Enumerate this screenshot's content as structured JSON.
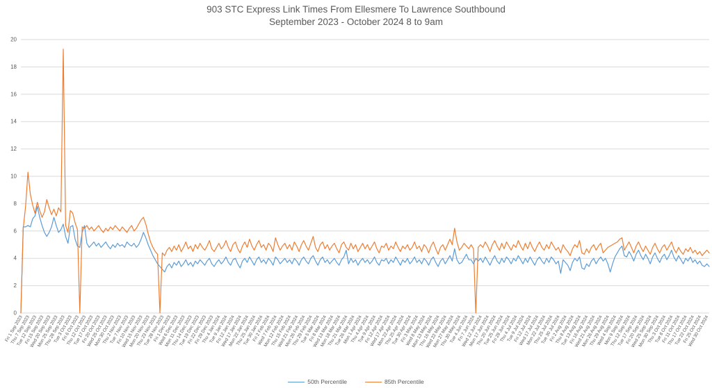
{
  "chart_data": {
    "type": "line",
    "title_line1": "903 STC Express Link Times From Ellesmere To Lawrence Southbound",
    "title_line2": "September 2023 - October 2024 8 to 9am",
    "xlabel": "",
    "ylabel": "",
    "ylim": [
      0,
      20
    ],
    "y_tick_step": 2,
    "grid": "horizontal",
    "legend_position": "bottom-center",
    "colors": {
      "series_50th": "#5B9BD5",
      "series_85th": "#ED7D31",
      "gridline": "#D9D9D9",
      "axis_text": "#595959",
      "title_text": "#595959"
    },
    "label_every_n_points": 3,
    "x_labels": [
      "Fri 1 Sep 2023",
      "Thu 7 Sep 2023",
      "Tue 12 Sep 2023",
      "Fri 15 Sep 2023",
      "Wed 20 Sep 2023",
      "Mon 25 Sep 2023",
      "Thu 28 Sep 2023",
      "Tue 3 Oct 2023",
      "Fri 6 Oct 2023",
      "Thu 12 Oct 2023",
      "Tue 17 Oct 2023",
      "Fri 20 Oct 2023",
      "Wed 25 Oct 2023",
      "Mon 30 Oct 2023",
      "Thu 2 Nov 2023",
      "Tue 7 Nov 2023",
      "Fri 10 Nov 2023",
      "Wed 15 Nov 2023",
      "Mon 20 Nov 2023",
      "Thu 23 Nov 2023",
      "Tue 28 Nov 2023",
      "Fri 1 Dec 2023",
      "Wed 6 Dec 2023",
      "Mon 11 Dec 2023",
      "Thu 14 Dec 2023",
      "Tue 19 Dec 2023",
      "Fri 22 Dec 2023",
      "Fri 29 Dec 2023",
      "Thu 4 Jan 2024",
      "Tue 9 Jan 2024",
      "Fri 12 Jan 2024",
      "Wed 17 Jan 2024",
      "Mon 22 Jan 2024",
      "Thu 25 Jan 2024",
      "Tue 30 Jan 2024",
      "Fri 2 Feb 2024",
      "Wed 7 Feb 2024",
      "Mon 12 Feb 2024",
      "Thu 15 Feb 2024",
      "Wed 21 Feb 2024",
      "Mon 26 Feb 2024",
      "Thu 29 Feb 2024",
      "Tue 5 Mar 2024",
      "Fri 8 Mar 2024",
      "Wed 13 Mar 2024",
      "Mon 18 Mar 2024",
      "Thu 21 Mar 2024",
      "Tue 26 Mar 2024",
      "Mon 1 Apr 2024",
      "Thu 4 Apr 2024",
      "Tue 9 Apr 2024",
      "Fri 12 Apr 2024",
      "Wed 17 Apr 2024",
      "Mon 22 Apr 2024",
      "Thu 25 Apr 2024",
      "Tue 30 Apr 2024",
      "Fri 3 May 2024",
      "Wed 8 May 2024",
      "Mon 13 May 2024",
      "Thu 16 May 2024",
      "Wed 22 May 2024",
      "Mon 27 May 2024",
      "Thu 30 May 2024",
      "Tue 4 Jun 2024",
      "Fri 7 Jun 2024",
      "Wed 12 Jun 2024",
      "Mon 17 Jun 2024",
      "Thu 20 Jun 2024",
      "Tue 25 Jun 2024",
      "Fri 28 Jun 2024",
      "Thu 4 Jul 2024",
      "Tue 9 Jul 2024",
      "Fri 12 Jul 2024",
      "Wed 17 Jul 2024",
      "Mon 22 Jul 2024",
      "Thu 25 Jul 2024",
      "Tue 30 Jul 2024",
      "Fri 2 Aug 2024",
      "Thu 8 Aug 2024",
      "Tue 13 Aug 2024",
      "Fri 16 Aug 2024",
      "Wed 21 Aug 2024",
      "Mon 26 Aug 2024",
      "Thu 29 Aug 2024",
      "Wed 4 Sep 2024",
      "Mon 9 Sep 2024",
      "Thu 12 Sep 2024",
      "Tue 17 Sep 2024",
      "Fri 20 Sep 2024",
      "Wed 25 Sep 2024",
      "Mon 30 Sep 2024",
      "Thu 3 Oct 2024",
      "Tue 8 Oct 2024",
      "Fri 11 Oct 2024",
      "Thu 17 Oct 2024",
      "Tue 22 Oct 2024",
      "Fri 25 Oct 2024",
      "Wed 30 Oct 2024"
    ],
    "series": [
      {
        "name": "50th Percentile",
        "color": "#5B9BD5",
        "values": [
          0,
          6.3,
          6.3,
          6.4,
          6.3,
          6.9,
          7.1,
          7.8,
          7.0,
          6.4,
          5.9,
          5.6,
          5.9,
          6.3,
          7.0,
          6.4,
          5.9,
          6.1,
          6.5,
          5.6,
          5.1,
          6.3,
          6.4,
          5.4,
          4.9,
          4.8,
          5.9,
          6.4,
          5.1,
          4.8,
          5.0,
          5.2,
          4.9,
          5.1,
          4.8,
          5.0,
          5.2,
          4.9,
          4.7,
          5.0,
          4.8,
          5.1,
          4.9,
          5.0,
          4.8,
          5.2,
          5.0,
          4.9,
          5.1,
          4.8,
          5.0,
          5.4,
          5.9,
          5.5,
          5.0,
          4.6,
          4.2,
          3.9,
          3.6,
          3.4,
          3.2,
          3.0,
          3.4,
          3.6,
          3.3,
          3.7,
          3.5,
          3.8,
          3.4,
          3.6,
          3.9,
          3.5,
          3.7,
          3.4,
          3.8,
          3.6,
          3.9,
          3.7,
          3.5,
          3.8,
          4.0,
          3.6,
          3.4,
          3.7,
          3.9,
          3.6,
          3.8,
          4.1,
          3.7,
          3.5,
          3.9,
          4.0,
          3.6,
          3.3,
          3.8,
          4.0,
          3.7,
          4.1,
          3.8,
          3.5,
          3.9,
          4.1,
          3.7,
          3.9,
          3.6,
          4.0,
          3.8,
          3.5,
          4.1,
          3.9,
          3.6,
          3.8,
          4.0,
          3.7,
          3.9,
          3.6,
          4.0,
          3.8,
          3.5,
          3.9,
          4.1,
          3.8,
          3.6,
          4.0,
          4.2,
          3.8,
          3.5,
          3.9,
          4.1,
          3.7,
          3.9,
          3.6,
          3.8,
          4.0,
          3.7,
          3.5,
          3.9,
          4.1,
          4.6,
          3.6,
          4.0,
          3.7,
          3.9,
          3.5,
          3.8,
          4.0,
          3.7,
          3.9,
          3.6,
          3.8,
          4.1,
          3.7,
          3.5,
          3.9,
          3.8,
          4.0,
          3.6,
          3.9,
          3.7,
          4.1,
          3.8,
          3.5,
          3.9,
          3.7,
          4.0,
          3.6,
          3.8,
          4.1,
          3.7,
          3.9,
          3.6,
          4.0,
          3.8,
          3.5,
          3.9,
          4.1,
          3.7,
          3.4,
          3.8,
          4.0,
          3.6,
          3.9,
          4.2,
          3.8,
          4.7,
          3.9,
          3.6,
          3.7,
          4.0,
          4.3,
          3.9,
          3.9,
          3.6,
          4.0,
          3.8,
          4.0,
          3.7,
          4.1,
          3.8,
          3.5,
          3.9,
          4.2,
          3.8,
          3.6,
          4.0,
          3.7,
          4.1,
          3.9,
          3.6,
          4.0,
          3.8,
          4.2,
          3.9,
          3.6,
          4.0,
          3.7,
          4.1,
          3.8,
          3.5,
          3.9,
          4.1,
          3.8,
          3.6,
          4.0,
          3.7,
          4.1,
          3.9,
          3.6,
          3.8,
          2.9,
          3.9,
          3.7,
          3.5,
          3.1,
          3.7,
          4.0,
          3.8,
          4.1,
          3.3,
          3.2,
          3.6,
          3.4,
          3.8,
          4.0,
          3.6,
          3.9,
          4.1,
          3.8,
          4.0,
          3.6,
          3.0,
          3.6,
          4.1,
          4.4,
          4.7,
          4.9,
          4.2,
          4.1,
          4.5,
          4.2,
          3.8,
          4.3,
          4.6,
          4.2,
          3.9,
          4.3,
          4.0,
          3.6,
          4.1,
          4.4,
          4.0,
          3.7,
          4.1,
          4.3,
          3.9,
          4.2,
          4.6,
          4.1,
          3.8,
          4.2,
          3.9,
          3.6,
          4.0,
          3.8,
          4.1,
          3.7,
          3.9,
          3.6,
          3.8,
          3.5,
          3.4,
          3.6,
          3.4
        ]
      },
      {
        "name": "85th Percentile",
        "color": "#ED7D31",
        "values": [
          0,
          6.2,
          7.8,
          10.3,
          8.7,
          7.9,
          7.3,
          8.1,
          7.5,
          7.0,
          7.4,
          8.3,
          7.7,
          7.2,
          7.6,
          7.1,
          7.7,
          7.4,
          19.3,
          6.4,
          5.9,
          7.5,
          7.3,
          6.6,
          6.1,
          0,
          6.3,
          6.2,
          6.4,
          6.1,
          6.3,
          6.0,
          6.2,
          6.4,
          6.1,
          5.9,
          6.2,
          6.0,
          6.3,
          6.1,
          6.4,
          6.2,
          6.0,
          6.3,
          6.1,
          5.9,
          6.2,
          6.4,
          6.0,
          6.2,
          6.5,
          6.8,
          7.0,
          6.5,
          5.8,
          5.2,
          4.8,
          4.5,
          4.3,
          0,
          4.4,
          4.2,
          4.6,
          4.8,
          4.5,
          4.9,
          4.6,
          5.0,
          4.5,
          4.8,
          5.2,
          4.7,
          4.9,
          4.5,
          5.0,
          4.7,
          5.1,
          4.8,
          4.6,
          4.9,
          5.3,
          4.7,
          4.5,
          4.8,
          5.1,
          4.7,
          4.9,
          5.3,
          4.8,
          4.5,
          5.0,
          5.2,
          4.7,
          4.4,
          4.9,
          5.2,
          4.8,
          5.4,
          4.9,
          4.6,
          5.0,
          5.3,
          4.8,
          5.0,
          4.6,
          5.1,
          4.9,
          4.5,
          5.5,
          5.0,
          4.6,
          4.9,
          5.1,
          4.7,
          5.0,
          4.6,
          5.2,
          4.9,
          4.5,
          5.0,
          5.3,
          4.9,
          4.6,
          5.1,
          5.6,
          4.8,
          4.5,
          5.0,
          5.2,
          4.7,
          5.0,
          4.6,
          4.9,
          5.1,
          4.7,
          4.4,
          5.0,
          5.2,
          4.8,
          4.6,
          5.1,
          4.7,
          5.0,
          4.5,
          4.8,
          5.1,
          4.7,
          5.0,
          4.6,
          4.9,
          5.2,
          4.7,
          4.4,
          4.9,
          4.8,
          5.1,
          4.6,
          4.9,
          4.7,
          5.2,
          4.8,
          4.5,
          4.9,
          4.7,
          5.0,
          4.6,
          4.8,
          5.2,
          4.7,
          4.9,
          4.5,
          5.0,
          4.8,
          4.4,
          4.9,
          5.2,
          4.7,
          4.3,
          4.8,
          5.0,
          4.6,
          5.0,
          5.4,
          5.0,
          6.2,
          5.2,
          4.6,
          4.8,
          5.1,
          4.9,
          4.7,
          5.0,
          4.7,
          0,
          4.8,
          5.0,
          4.8,
          5.2,
          4.9,
          4.5,
          5.0,
          5.3,
          4.9,
          4.6,
          5.1,
          4.7,
          5.2,
          4.9,
          4.6,
          5.0,
          4.8,
          5.3,
          4.9,
          4.6,
          5.1,
          4.7,
          5.2,
          4.8,
          4.5,
          4.9,
          5.2,
          4.8,
          4.6,
          5.0,
          4.7,
          5.2,
          4.9,
          4.6,
          4.8,
          4.4,
          5.0,
          4.7,
          4.5,
          4.2,
          4.7,
          5.0,
          4.8,
          5.3,
          4.4,
          4.3,
          4.7,
          4.4,
          4.8,
          5.0,
          4.6,
          4.9,
          5.1,
          4.4,
          4.6,
          4.8,
          4.9,
          5.0,
          5.1,
          5.2,
          5.4,
          5.5,
          4.6,
          4.9,
          5.2,
          4.8,
          4.4,
          4.9,
          5.2,
          4.8,
          4.5,
          4.9,
          4.6,
          4.3,
          4.8,
          5.1,
          4.7,
          4.4,
          4.8,
          5.0,
          4.6,
          4.9,
          5.2,
          4.7,
          4.4,
          4.8,
          4.5,
          4.3,
          4.7,
          4.5,
          4.8,
          4.4,
          4.6,
          4.3,
          4.5,
          4.2,
          4.4,
          4.6,
          4.4
        ]
      }
    ]
  }
}
